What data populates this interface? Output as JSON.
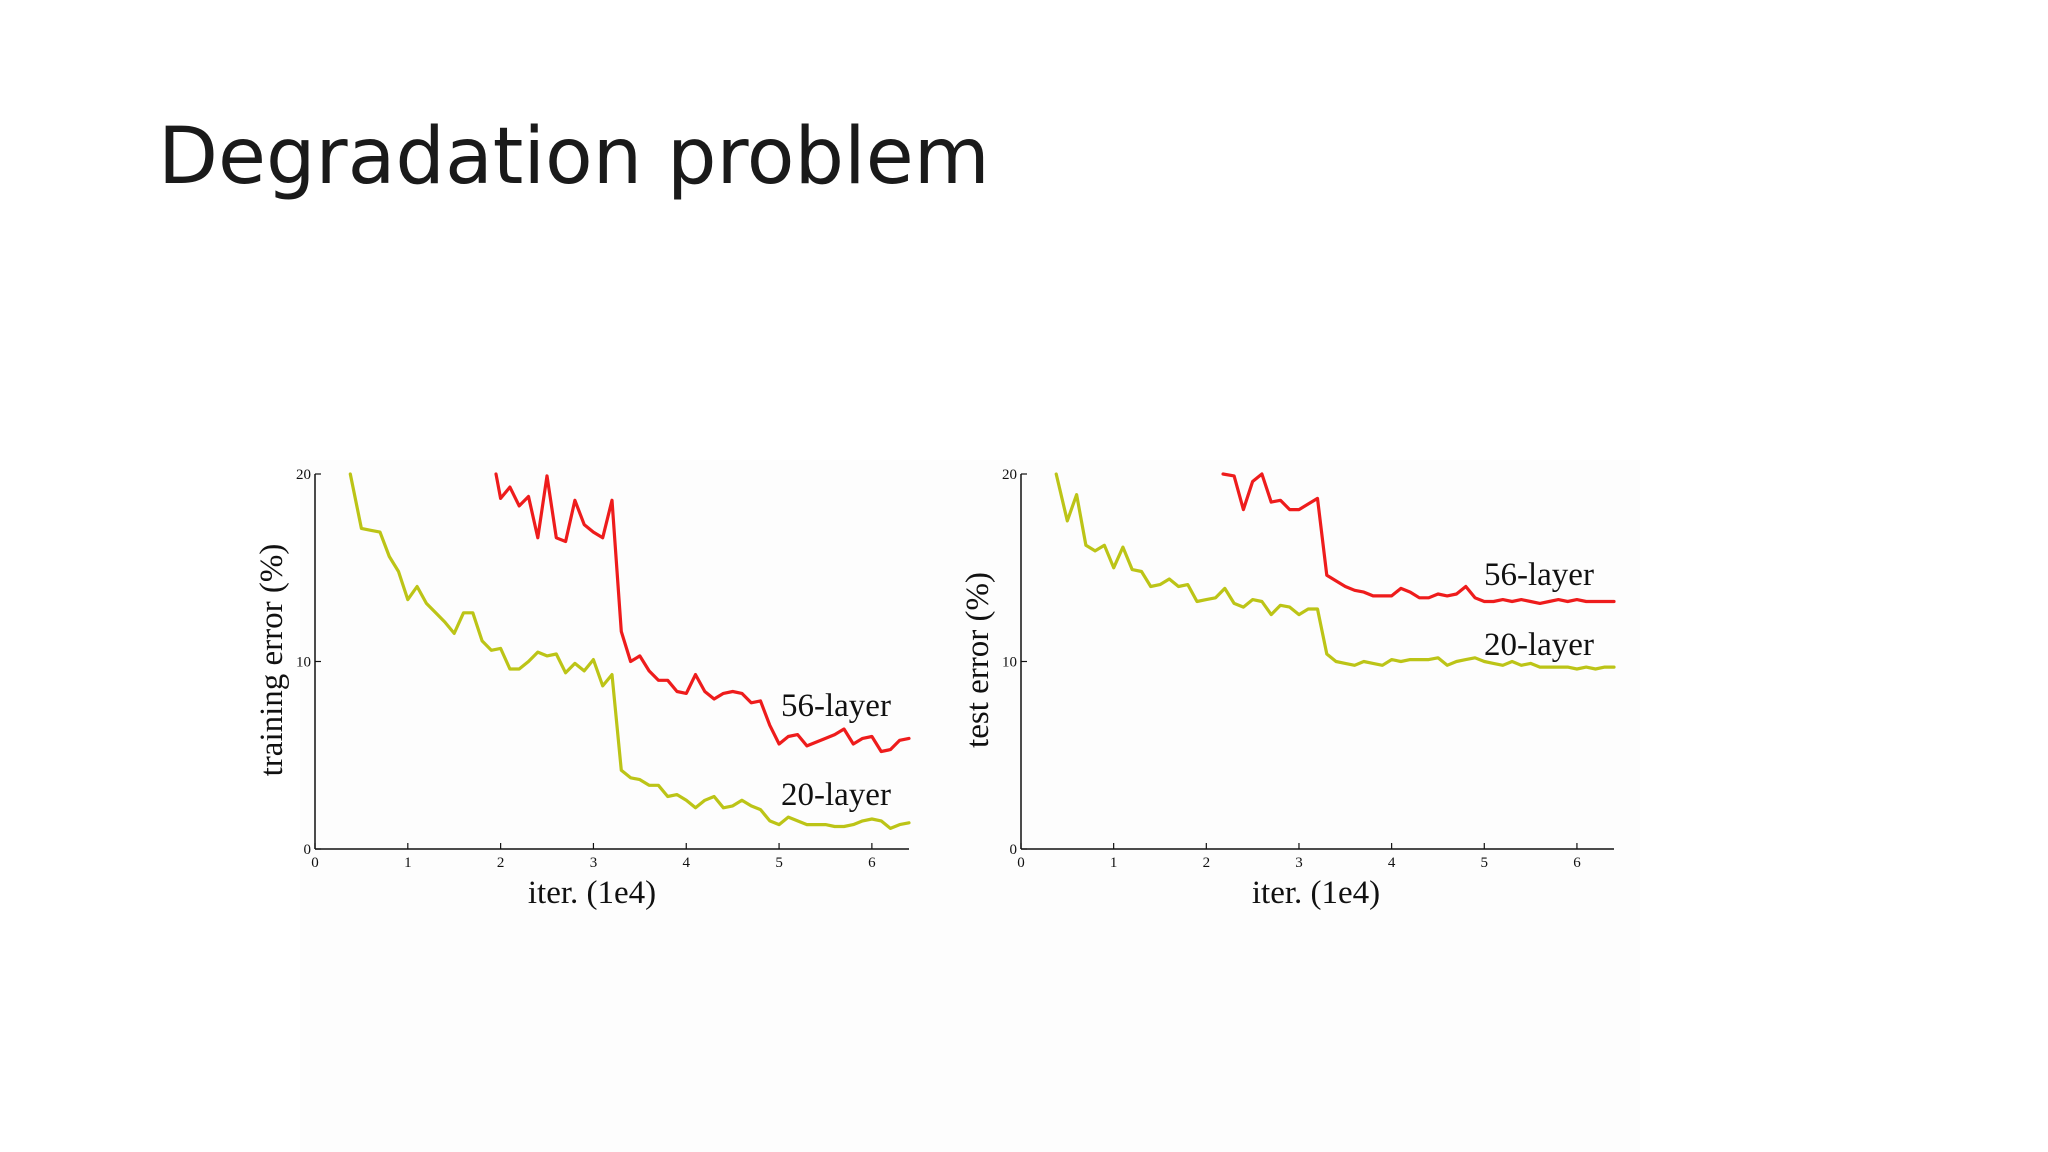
{
  "slide": {
    "title": "Degradation problem"
  },
  "colors": {
    "red_series": "#ee1c1c",
    "green_series": "#bcc417",
    "axis": "#111111"
  },
  "chart_data": [
    {
      "type": "line",
      "xlabel": "iter. (1e4)",
      "ylabel": "training error (%)",
      "xlim": [
        0,
        6.4
      ],
      "ylim": [
        0,
        20
      ],
      "x_ticks": [
        "0",
        "1",
        "2",
        "3",
        "4",
        "5",
        "6"
      ],
      "y_ticks": [
        "0",
        "10",
        "20"
      ],
      "grid": false,
      "series": [
        {
          "name": "56-layer",
          "color": "#ee1c1c",
          "x": [
            1.95,
            2.0,
            2.1,
            2.2,
            2.3,
            2.4,
            2.5,
            2.6,
            2.7,
            2.8,
            2.9,
            3.0,
            3.1,
            3.2,
            3.3,
            3.4,
            3.5,
            3.6,
            3.7,
            3.8,
            3.9,
            4.0,
            4.1,
            4.2,
            4.3,
            4.4,
            4.5,
            4.6,
            4.7,
            4.8,
            4.9,
            5.0,
            5.1,
            5.2,
            5.3,
            5.4,
            5.5,
            5.6,
            5.7,
            5.8,
            5.9,
            6.0,
            6.1,
            6.2,
            6.3,
            6.4
          ],
          "values": [
            20.0,
            18.7,
            19.3,
            18.3,
            18.8,
            16.6,
            19.9,
            16.6,
            16.4,
            18.6,
            17.3,
            16.9,
            16.6,
            18.6,
            11.6,
            10.0,
            10.3,
            9.5,
            9.0,
            9.0,
            8.4,
            8.3,
            9.3,
            8.4,
            8.0,
            8.3,
            8.4,
            8.3,
            7.8,
            7.9,
            6.6,
            5.6,
            6.0,
            6.1,
            5.5,
            5.7,
            5.9,
            6.1,
            6.4,
            5.6,
            5.9,
            6.0,
            5.2,
            5.3,
            5.8,
            5.9
          ]
        },
        {
          "name": "20-layer",
          "color": "#bcc417",
          "x": [
            0.38,
            0.5,
            0.6,
            0.7,
            0.8,
            0.9,
            1.0,
            1.1,
            1.2,
            1.3,
            1.4,
            1.5,
            1.6,
            1.7,
            1.8,
            1.9,
            2.0,
            2.1,
            2.2,
            2.3,
            2.4,
            2.5,
            2.6,
            2.7,
            2.8,
            2.9,
            3.0,
            3.1,
            3.2,
            3.3,
            3.4,
            3.5,
            3.6,
            3.7,
            3.8,
            3.9,
            4.0,
            4.1,
            4.2,
            4.3,
            4.4,
            4.5,
            4.6,
            4.7,
            4.8,
            4.9,
            5.0,
            5.1,
            5.2,
            5.3,
            5.4,
            5.5,
            5.6,
            5.7,
            5.8,
            5.9,
            6.0,
            6.1,
            6.2,
            6.3,
            6.4
          ],
          "values": [
            20.0,
            17.1,
            17.0,
            16.9,
            15.6,
            14.8,
            13.3,
            14.0,
            13.1,
            12.6,
            12.1,
            11.5,
            12.6,
            12.6,
            11.1,
            10.6,
            10.7,
            9.6,
            9.6,
            10.0,
            10.5,
            10.3,
            10.4,
            9.4,
            9.9,
            9.5,
            10.1,
            8.7,
            9.3,
            4.2,
            3.8,
            3.7,
            3.4,
            3.4,
            2.8,
            2.9,
            2.6,
            2.2,
            2.6,
            2.8,
            2.2,
            2.3,
            2.6,
            2.3,
            2.1,
            1.5,
            1.3,
            1.7,
            1.5,
            1.3,
            1.3,
            1.3,
            1.2,
            1.2,
            1.3,
            1.5,
            1.6,
            1.5,
            1.1,
            1.3,
            1.4
          ]
        }
      ]
    },
    {
      "type": "line",
      "xlabel": "iter. (1e4)",
      "ylabel": "test error (%)",
      "xlim": [
        0,
        6.4
      ],
      "ylim": [
        0,
        20
      ],
      "x_ticks": [
        "0",
        "1",
        "2",
        "3",
        "4",
        "5",
        "6"
      ],
      "y_ticks": [
        "0",
        "10",
        "20"
      ],
      "grid": false,
      "series": [
        {
          "name": "56-layer",
          "color": "#ee1c1c",
          "x": [
            2.18,
            2.3,
            2.4,
            2.5,
            2.6,
            2.7,
            2.8,
            2.9,
            3.0,
            3.1,
            3.2,
            3.3,
            3.4,
            3.5,
            3.6,
            3.7,
            3.8,
            3.9,
            4.0,
            4.1,
            4.2,
            4.3,
            4.4,
            4.5,
            4.6,
            4.7,
            4.8,
            4.9,
            5.0,
            5.1,
            5.2,
            5.3,
            5.4,
            5.5,
            5.6,
            5.7,
            5.8,
            5.9,
            6.0,
            6.1,
            6.2,
            6.3,
            6.4
          ],
          "values": [
            20.0,
            19.9,
            18.1,
            19.6,
            20.0,
            18.5,
            18.6,
            18.1,
            18.1,
            18.4,
            18.7,
            14.6,
            14.3,
            14.0,
            13.8,
            13.7,
            13.5,
            13.5,
            13.5,
            13.9,
            13.7,
            13.4,
            13.4,
            13.6,
            13.5,
            13.6,
            14.0,
            13.4,
            13.2,
            13.2,
            13.3,
            13.2,
            13.3,
            13.2,
            13.1,
            13.2,
            13.3,
            13.2,
            13.3,
            13.2,
            13.2,
            13.2,
            13.2
          ]
        },
        {
          "name": "20-layer",
          "color": "#bcc417",
          "x": [
            0.38,
            0.5,
            0.6,
            0.7,
            0.8,
            0.9,
            1.0,
            1.1,
            1.2,
            1.3,
            1.4,
            1.5,
            1.6,
            1.7,
            1.8,
            1.9,
            2.0,
            2.1,
            2.2,
            2.3,
            2.4,
            2.5,
            2.6,
            2.7,
            2.8,
            2.9,
            3.0,
            3.1,
            3.2,
            3.3,
            3.4,
            3.5,
            3.6,
            3.7,
            3.8,
            3.9,
            4.0,
            4.1,
            4.2,
            4.3,
            4.4,
            4.5,
            4.6,
            4.7,
            4.8,
            4.9,
            5.0,
            5.1,
            5.2,
            5.3,
            5.4,
            5.5,
            5.6,
            5.7,
            5.8,
            5.9,
            6.0,
            6.1,
            6.2,
            6.3,
            6.4
          ],
          "values": [
            20.0,
            17.5,
            18.9,
            16.2,
            15.9,
            16.2,
            15.0,
            16.1,
            14.9,
            14.8,
            14.0,
            14.1,
            14.4,
            14.0,
            14.1,
            13.2,
            13.3,
            13.4,
            13.9,
            13.1,
            12.9,
            13.3,
            13.2,
            12.5,
            13.0,
            12.9,
            12.5,
            12.8,
            12.8,
            10.4,
            10.0,
            9.9,
            9.8,
            10.0,
            9.9,
            9.8,
            10.1,
            10.0,
            10.1,
            10.1,
            10.1,
            10.2,
            9.8,
            10.0,
            10.1,
            10.2,
            10.0,
            9.9,
            9.8,
            10.0,
            9.8,
            9.9,
            9.7,
            9.7,
            9.7,
            9.7,
            9.6,
            9.7,
            9.6,
            9.7,
            9.7
          ]
        }
      ]
    }
  ]
}
